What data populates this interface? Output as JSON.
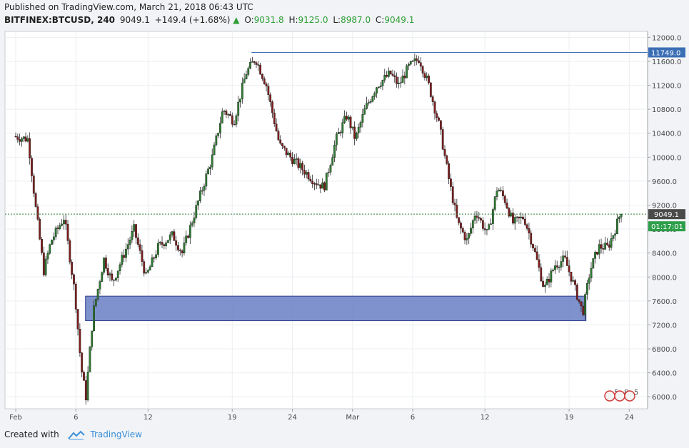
{
  "header": {
    "published": "Published on TradingView.com, March 21, 2018 06:43 UTC",
    "symbol": "BITFINEX:BTCUSD, 240",
    "last": "9049.1",
    "change": "+149.4 (+1.68%)",
    "o_label": "O:",
    "o": "9031.8",
    "h_label": "H:",
    "h": "9125.0",
    "l_label": "L:",
    "l": "8987.0",
    "c_label": "C:",
    "c": "9049.1"
  },
  "footer": {
    "created": "Created with",
    "brand": "TradingView"
  },
  "colors": {
    "up": "#2e7d32",
    "down": "#7f1d1d",
    "zone_fill": "#6a7fc4",
    "zone_stroke": "#2f3f8f",
    "resistance": "#3b6fb5",
    "price_label": "#4a4a4a",
    "accent": "#3b8fd8"
  },
  "chart_data": {
    "type": "candlestick",
    "timeframe": "240",
    "ylim": [
      5800,
      12100
    ],
    "yticks": [
      6000,
      6400,
      6800,
      7200,
      7600,
      8000,
      8400,
      8800,
      9200,
      9600,
      10000,
      10400,
      10800,
      11200,
      11600,
      12000
    ],
    "ytick_labels": [
      "6000.0",
      "6400.0",
      "6800.0",
      "7200.0",
      "7600.0",
      "8000.0",
      "8400.0",
      "8800.0",
      "9200.0",
      "9600.0",
      "10000.0",
      "10400.0",
      "10800.0",
      "11200.0",
      "11600.0",
      "12000.0"
    ],
    "xticks": [
      {
        "day": 1,
        "label": "Feb"
      },
      {
        "day": 6,
        "label": "6"
      },
      {
        "day": 12,
        "label": "12"
      },
      {
        "day": 19,
        "label": "19"
      },
      {
        "day": 24,
        "label": "24"
      },
      {
        "day": 29,
        "label": "Mar"
      },
      {
        "day": 34,
        "label": "6"
      },
      {
        "day": 40,
        "label": "12"
      },
      {
        "day": 47,
        "label": "19"
      },
      {
        "day": 52,
        "label": "24"
      }
    ],
    "price_keypoints": [
      [
        0.0,
        10350
      ],
      [
        1.2,
        10300
      ],
      [
        1.8,
        9200
      ],
      [
        2.5,
        8100
      ],
      [
        3.1,
        8600
      ],
      [
        4.2,
        9000
      ],
      [
        5.1,
        7700
      ],
      [
        5.6,
        6500
      ],
      [
        6.0,
        6000
      ],
      [
        6.6,
        7400
      ],
      [
        7.5,
        8300
      ],
      [
        8.2,
        7900
      ],
      [
        9.0,
        8300
      ],
      [
        10.0,
        8800
      ],
      [
        11.0,
        8000
      ],
      [
        12.0,
        8500
      ],
      [
        13.2,
        8700
      ],
      [
        14.0,
        8400
      ],
      [
        15.4,
        9300
      ],
      [
        16.5,
        10000
      ],
      [
        17.4,
        10800
      ],
      [
        18.3,
        10600
      ],
      [
        19.3,
        11400
      ],
      [
        20.1,
        11650
      ],
      [
        21.0,
        11200
      ],
      [
        22.1,
        10200
      ],
      [
        23.0,
        10000
      ],
      [
        24.0,
        9800
      ],
      [
        25.0,
        9600
      ],
      [
        25.8,
        9500
      ],
      [
        26.8,
        10300
      ],
      [
        27.7,
        10700
      ],
      [
        28.4,
        10300
      ],
      [
        29.2,
        10800
      ],
      [
        30.2,
        11200
      ],
      [
        31.3,
        11400
      ],
      [
        32.0,
        11200
      ],
      [
        32.8,
        11500
      ],
      [
        33.7,
        11650
      ],
      [
        34.5,
        11200
      ],
      [
        35.4,
        10500
      ],
      [
        36.2,
        9600
      ],
      [
        36.9,
        8900
      ],
      [
        37.7,
        8600
      ],
      [
        38.4,
        9100
      ],
      [
        39.4,
        8700
      ],
      [
        40.2,
        9500
      ],
      [
        40.8,
        9300
      ],
      [
        41.5,
        8900
      ],
      [
        42.4,
        9000
      ],
      [
        43.2,
        8500
      ],
      [
        44.1,
        7800
      ],
      [
        45.0,
        8200
      ],
      [
        45.8,
        8300
      ],
      [
        46.5,
        7900
      ],
      [
        47.3,
        7400
      ],
      [
        47.9,
        8100
      ],
      [
        48.6,
        8500
      ],
      [
        49.4,
        8500
      ],
      [
        50.0,
        8800
      ],
      [
        50.4,
        9050
      ]
    ],
    "last_price": 9049.1,
    "last_price_label": "9049.1",
    "countdown": "01:17:01",
    "resistance": {
      "price": 11749.0,
      "label": "11749.0",
      "from_day": 20.6
    },
    "support_zone": {
      "low": 7270,
      "high": 7680,
      "from_day": 6.8,
      "to_day": 48.4
    },
    "grid": true
  },
  "events": {
    "icons": [
      "5",
      "8",
      "5"
    ]
  }
}
